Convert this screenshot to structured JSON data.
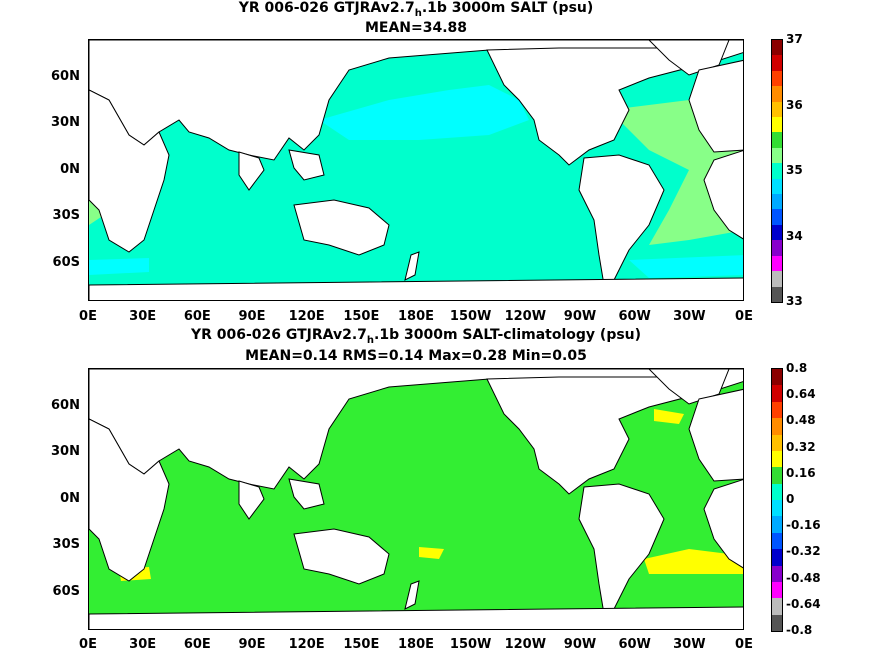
{
  "panel1": {
    "title": "YR 006-026 GTJRAv2.7",
    "title_sub": "h",
    "title_rest": ".1b 3000m SALT (psu)",
    "stats": "MEAN=34.88",
    "colorbar_labels": [
      "37",
      "36",
      "35",
      "34",
      "33"
    ],
    "colorbar_colors": [
      "#8b0000",
      "#d10000",
      "#ff4000",
      "#ff8c00",
      "#ffc000",
      "#ffff00",
      "#33dd33",
      "#88ff88",
      "#00ffcc",
      "#00e0ff",
      "#00aaff",
      "#0055ff",
      "#0000cc",
      "#8800cc",
      "#ff00ff",
      "#bbbbbb",
      "#555555"
    ]
  },
  "panel2": {
    "title": "YR 006-026 GTJRAv2.7",
    "title_sub": "h",
    "title_rest": ".1b 3000m SALT-climatology (psu)",
    "stats": "MEAN=0.14   RMS=0.14   Max=0.28   Min=0.05",
    "colorbar_labels": [
      "0.8",
      "0.64",
      "0.48",
      "0.32",
      "0.16",
      "0",
      "-0.16",
      "-0.32",
      "-0.48",
      "-0.64",
      "-0.8"
    ],
    "colorbar_colors": [
      "#8b0000",
      "#d10000",
      "#ff4000",
      "#ff8c00",
      "#ffc000",
      "#ffff00",
      "#33dd33",
      "#00ffcc",
      "#00e0ff",
      "#00aaff",
      "#0055ff",
      "#0000cc",
      "#8800cc",
      "#ff00ff",
      "#bbbbbb",
      "#555555"
    ]
  },
  "lat_labels": [
    "60N",
    "30N",
    "0N",
    "30S",
    "60S"
  ],
  "lon_labels": [
    "0E",
    "30E",
    "60E",
    "90E",
    "120E",
    "150E",
    "180E",
    "150W",
    "120W",
    "90W",
    "60W",
    "30W",
    "0E"
  ],
  "colors": {
    "panel1_ocean": "#00ffcc",
    "panel1_high": "#88ff88",
    "panel1_low": "#00ffff",
    "panel2_ocean": "#33ee33",
    "panel2_pos": "#ffff00",
    "land": "#ffffff",
    "coast": "#000000"
  }
}
